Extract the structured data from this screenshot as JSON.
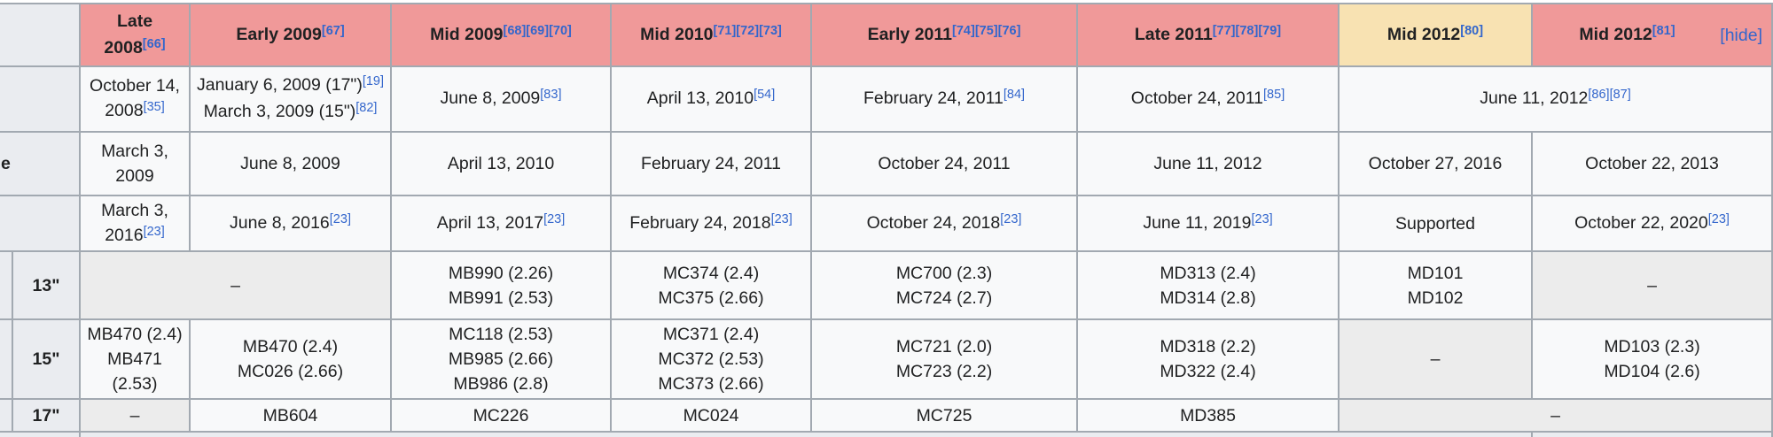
{
  "colors": {
    "border": "#a2a9b1",
    "era_pink": "#f09999",
    "era_tan": "#f8e2b2",
    "header_gray": "#eaecf0",
    "na_gray": "#ececec",
    "cell_bg": "#f8f9fa",
    "text": "#202122",
    "link": "#3366cc"
  },
  "table": {
    "hide_label": "[hide]",
    "na_dash": "–",
    "row_header_fragments": {
      "row3": "e"
    },
    "header_cells": [
      {
        "id": "late-2008",
        "col": "late2008",
        "style": "pink",
        "lines": [
          {
            "text": "Late"
          },
          {
            "text": "2008",
            "refs": [
              "[66]"
            ]
          }
        ]
      },
      {
        "id": "early-2009",
        "col": "early2009",
        "style": "pink",
        "lines": [
          {
            "text": "Early 2009",
            "refs": [
              "[67]"
            ]
          }
        ]
      },
      {
        "id": "mid-2009",
        "col": "mid2009",
        "style": "pink",
        "lines": [
          {
            "text": "Mid 2009",
            "refs": [
              "[68]",
              "[69]",
              "[70]"
            ]
          }
        ]
      },
      {
        "id": "mid-2010",
        "col": "mid2010",
        "style": "pink",
        "lines": [
          {
            "text": "Mid 2010",
            "refs": [
              "[71]",
              "[72]",
              "[73]"
            ]
          }
        ]
      },
      {
        "id": "early-2011",
        "col": "early2011",
        "style": "pink",
        "lines": [
          {
            "text": "Early 2011",
            "refs": [
              "[74]",
              "[75]",
              "[76]"
            ]
          }
        ]
      },
      {
        "id": "late-2011",
        "col": "late2011",
        "style": "pink",
        "lines": [
          {
            "text": "Late 2011",
            "refs": [
              "[77]",
              "[78]",
              "[79]"
            ]
          }
        ]
      },
      {
        "id": "mid-2012-13",
        "col": "mid2012a",
        "style": "tan",
        "lines": [
          {
            "text": "Mid 2012",
            "refs": [
              "[80]"
            ]
          }
        ]
      },
      {
        "id": "mid-2012-15",
        "col": "mid2012b",
        "style": "pink",
        "hide": true,
        "lines": [
          {
            "text": "Mid 2012",
            "refs": [
              "[81]"
            ]
          }
        ]
      }
    ],
    "body_rows": [
      {
        "id": "row2-dates",
        "grid_row": 2,
        "head_fragment": "",
        "cells": [
          {
            "col": "late2008",
            "lines": [
              {
                "text": "October 14,"
              },
              {
                "text": "2008",
                "refs": [
                  "[35]"
                ]
              }
            ]
          },
          {
            "col": "early2009",
            "lines": [
              {
                "text": "January 6, 2009 (17\")",
                "refs": [
                  "[19]"
                ]
              },
              {
                "text": "March 3, 2009 (15\")",
                "refs": [
                  "[82]"
                ]
              }
            ]
          },
          {
            "col": "mid2009",
            "lines": [
              {
                "text": "June 8, 2009",
                "refs": [
                  "[83]"
                ]
              }
            ]
          },
          {
            "col": "mid2010",
            "lines": [
              {
                "text": "April 13, 2010",
                "refs": [
                  "[54]"
                ]
              }
            ]
          },
          {
            "col": "early2011",
            "lines": [
              {
                "text": "February 24, 2011",
                "refs": [
                  "[84]"
                ]
              }
            ]
          },
          {
            "col": "late2011",
            "lines": [
              {
                "text": "October 24, 2011",
                "refs": [
                  "[85]"
                ]
              }
            ]
          },
          {
            "col": "mid2012a",
            "col_end": "mid2012b",
            "lines": [
              {
                "text": "June 11, 2012",
                "refs": [
                  "[86]",
                  "[87]"
                ]
              }
            ]
          }
        ]
      },
      {
        "id": "row3-dates",
        "grid_row": 3,
        "head_fragment": "e",
        "cells": [
          {
            "col": "late2008",
            "lines": [
              {
                "text": "March 3,"
              },
              {
                "text": "2009"
              }
            ]
          },
          {
            "col": "early2009",
            "lines": [
              {
                "text": "June 8, 2009"
              }
            ]
          },
          {
            "col": "mid2009",
            "lines": [
              {
                "text": "April 13, 2010"
              }
            ]
          },
          {
            "col": "mid2010",
            "lines": [
              {
                "text": "February 24, 2011"
              }
            ]
          },
          {
            "col": "early2011",
            "lines": [
              {
                "text": "October 24, 2011"
              }
            ]
          },
          {
            "col": "late2011",
            "lines": [
              {
                "text": "June 11, 2012"
              }
            ]
          },
          {
            "col": "mid2012a",
            "lines": [
              {
                "text": "October 27, 2016"
              }
            ]
          },
          {
            "col": "mid2012b",
            "lines": [
              {
                "text": "October 22, 2013"
              }
            ]
          }
        ]
      },
      {
        "id": "row4-support",
        "grid_row": 4,
        "head_fragment": "",
        "cells": [
          {
            "col": "late2008",
            "lines": [
              {
                "text": "March 3,"
              },
              {
                "text": "2016",
                "refs": [
                  "[23]"
                ]
              }
            ]
          },
          {
            "col": "early2009",
            "lines": [
              {
                "text": "June 8, 2016",
                "refs": [
                  "[23]"
                ]
              }
            ]
          },
          {
            "col": "mid2009",
            "lines": [
              {
                "text": "April 13, 2017",
                "refs": [
                  "[23]"
                ]
              }
            ]
          },
          {
            "col": "mid2010",
            "lines": [
              {
                "text": "February 24, 2018",
                "refs": [
                  "[23]"
                ]
              }
            ]
          },
          {
            "col": "early2011",
            "lines": [
              {
                "text": "October 24, 2018",
                "refs": [
                  "[23]"
                ]
              }
            ]
          },
          {
            "col": "late2011",
            "lines": [
              {
                "text": "June 11, 2019",
                "refs": [
                  "[23]"
                ]
              }
            ]
          },
          {
            "col": "mid2012a",
            "lines": [
              {
                "text": "Supported"
              }
            ]
          },
          {
            "col": "mid2012b",
            "lines": [
              {
                "text": "October 22, 2020",
                "refs": [
                  "[23]"
                ]
              }
            ]
          }
        ]
      }
    ],
    "size_rows": [
      {
        "id": "size-13",
        "grid_row": 5,
        "label": "13\"",
        "cells": [
          {
            "col": "late2008",
            "col_end": "early2009",
            "style": "na",
            "lines": [
              {
                "text": "–"
              }
            ]
          },
          {
            "col": "mid2009",
            "lines": [
              {
                "text": "MB990 (2.26)"
              },
              {
                "text": "MB991 (2.53)"
              }
            ]
          },
          {
            "col": "mid2010",
            "lines": [
              {
                "text": "MC374 (2.4)"
              },
              {
                "text": "MC375 (2.66)"
              }
            ]
          },
          {
            "col": "early2011",
            "lines": [
              {
                "text": "MC700 (2.3)"
              },
              {
                "text": "MC724 (2.7)"
              }
            ]
          },
          {
            "col": "late2011",
            "lines": [
              {
                "text": "MD313 (2.4)"
              },
              {
                "text": "MD314 (2.8)"
              }
            ]
          },
          {
            "col": "mid2012a",
            "lines": [
              {
                "text": "MD101"
              },
              {
                "text": "MD102"
              }
            ]
          },
          {
            "col": "mid2012b",
            "style": "na",
            "lines": [
              {
                "text": "–"
              }
            ]
          }
        ]
      },
      {
        "id": "size-15",
        "grid_row": 6,
        "label": "15\"",
        "cells": [
          {
            "col": "late2008",
            "lines": [
              {
                "text": "MB470 (2.4)"
              },
              {
                "text": "MB471"
              },
              {
                "text": "(2.53)"
              }
            ]
          },
          {
            "col": "early2009",
            "lines": [
              {
                "text": "MB470 (2.4)"
              },
              {
                "text": "MC026 (2.66)"
              }
            ]
          },
          {
            "col": "mid2009",
            "lines": [
              {
                "text": "MC118 (2.53)"
              },
              {
                "text": "MB985 (2.66)"
              },
              {
                "text": "MB986 (2.8)"
              }
            ]
          },
          {
            "col": "mid2010",
            "lines": [
              {
                "text": "MC371 (2.4)"
              },
              {
                "text": "MC372 (2.53)"
              },
              {
                "text": "MC373 (2.66)"
              }
            ]
          },
          {
            "col": "early2011",
            "lines": [
              {
                "text": "MC721 (2.0)"
              },
              {
                "text": "MC723 (2.2)"
              }
            ]
          },
          {
            "col": "late2011",
            "lines": [
              {
                "text": "MD318 (2.2)"
              },
              {
                "text": "MD322 (2.4)"
              }
            ]
          },
          {
            "col": "mid2012a",
            "style": "na",
            "lines": [
              {
                "text": "–"
              }
            ]
          },
          {
            "col": "mid2012b",
            "lines": [
              {
                "text": "MD103 (2.3)"
              },
              {
                "text": "MD104 (2.6)"
              }
            ]
          }
        ]
      },
      {
        "id": "size-17",
        "grid_row": 7,
        "label": "17\"",
        "cells": [
          {
            "col": "late2008",
            "style": "na",
            "lines": [
              {
                "text": "–"
              }
            ]
          },
          {
            "col": "early2009",
            "lines": [
              {
                "text": "MB604"
              }
            ]
          },
          {
            "col": "mid2009",
            "lines": [
              {
                "text": "MC226"
              }
            ]
          },
          {
            "col": "mid2010",
            "lines": [
              {
                "text": "MC024"
              }
            ]
          },
          {
            "col": "early2011",
            "lines": [
              {
                "text": "MC725"
              }
            ]
          },
          {
            "col": "late2011",
            "lines": [
              {
                "text": "MD385"
              }
            ]
          },
          {
            "col": "mid2012a",
            "col_end": "mid2012b",
            "style": "na",
            "lines": [
              {
                "text": "–"
              }
            ]
          }
        ]
      }
    ]
  }
}
